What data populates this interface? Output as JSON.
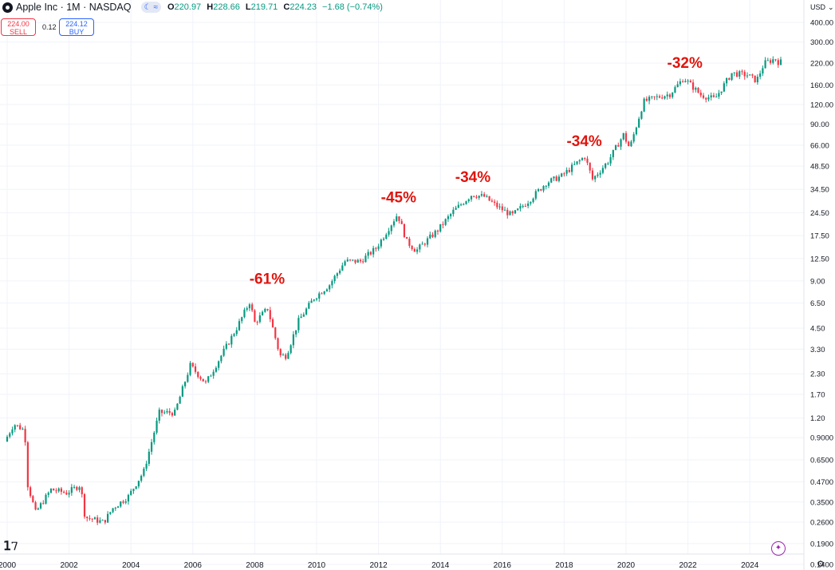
{
  "header": {
    "title": "Apple Inc · 1M · NASDAQ",
    "open_label": "O",
    "open": "220.97",
    "high_label": "H",
    "high": "228.66",
    "low_label": "L",
    "low": "219.71",
    "close_label": "C",
    "close": "224.23",
    "change": "−1.68 (−0.74%)"
  },
  "trade": {
    "sell_price": "224.00",
    "sell_label": "SELL",
    "spread": "0.12",
    "buy_price": "224.12",
    "buy_label": "BUY"
  },
  "currency": "USD",
  "colors": {
    "up": "#089981",
    "down": "#f23645",
    "annotation": "#e0150d",
    "grid": "#f0f3fa"
  },
  "chart_data": {
    "type": "candlestick",
    "title": "Apple Inc · 1M · NASDAQ",
    "scale": "log",
    "ylim": [
      0.118,
      430
    ],
    "xlim": [
      2000,
      2025.8
    ],
    "y_ticks": [
      "400.00",
      "300.00",
      "220.00",
      "160.00",
      "120.00",
      "90.00",
      "66.00",
      "48.50",
      "34.50",
      "24.50",
      "17.50",
      "12.50",
      "9.00",
      "6.50",
      "4.50",
      "3.30",
      "2.30",
      "1.70",
      "1.20",
      "0.9000",
      "0.6500",
      "0.4700",
      "0.3500",
      "0.2600",
      "0.1900",
      "0.1400"
    ],
    "x_ticks": [
      "2000",
      "2002",
      "2004",
      "2006",
      "2008",
      "2010",
      "2012",
      "2014",
      "2016",
      "2018",
      "2020",
      "2022",
      "2024"
    ],
    "price_path": [
      [
        2000.0,
        0.85
      ],
      [
        2000.3,
        1.1
      ],
      [
        2000.65,
        1.0
      ],
      [
        2000.75,
        0.45
      ],
      [
        2001.0,
        0.3
      ],
      [
        2001.5,
        0.42
      ],
      [
        2002.0,
        0.4
      ],
      [
        2002.45,
        0.45
      ],
      [
        2002.6,
        0.28
      ],
      [
        2003.2,
        0.26
      ],
      [
        2003.5,
        0.32
      ],
      [
        2004.0,
        0.38
      ],
      [
        2004.5,
        0.55
      ],
      [
        2005.0,
        1.3
      ],
      [
        2005.5,
        1.3
      ],
      [
        2006.0,
        2.6
      ],
      [
        2006.5,
        2.0
      ],
      [
        2007.0,
        3.0
      ],
      [
        2007.5,
        4.5
      ],
      [
        2007.95,
        6.8
      ],
      [
        2008.05,
        4.8
      ],
      [
        2008.5,
        6.0
      ],
      [
        2008.9,
        3.0
      ],
      [
        2009.1,
        3.0
      ],
      [
        2009.5,
        5.0
      ],
      [
        2010.0,
        7.0
      ],
      [
        2010.5,
        8.5
      ],
      [
        2011.0,
        12.0
      ],
      [
        2011.5,
        12.0
      ],
      [
        2012.0,
        14.5
      ],
      [
        2012.7,
        24.0
      ],
      [
        2013.0,
        16.0
      ],
      [
        2013.3,
        14.0
      ],
      [
        2014.0,
        19.0
      ],
      [
        2014.5,
        25.0
      ],
      [
        2015.1,
        32.0
      ],
      [
        2015.5,
        31.0
      ],
      [
        2015.9,
        27.0
      ],
      [
        2016.4,
        23.5
      ],
      [
        2017.0,
        30.0
      ],
      [
        2017.5,
        38.0
      ],
      [
        2018.0,
        42.0
      ],
      [
        2018.75,
        56.0
      ],
      [
        2019.0,
        40.0
      ],
      [
        2019.5,
        52.0
      ],
      [
        2020.0,
        77.0
      ],
      [
        2020.2,
        63.0
      ],
      [
        2020.65,
        125.0
      ],
      [
        2021.0,
        132.0
      ],
      [
        2021.5,
        140.0
      ],
      [
        2021.95,
        177.0
      ],
      [
        2022.5,
        138.0
      ],
      [
        2022.95,
        130.0
      ],
      [
        2023.5,
        190.0
      ],
      [
        2024.0,
        185.0
      ],
      [
        2024.3,
        170.0
      ],
      [
        2024.55,
        220.0
      ],
      [
        2024.9,
        235.0
      ],
      [
        2025.0,
        224.23
      ]
    ],
    "annotations": [
      {
        "text": "-61%",
        "x": 2008.4,
        "y": 8.6
      },
      {
        "text": "-45%",
        "x": 2012.65,
        "y": 28.5
      },
      {
        "text": "-34%",
        "x": 2015.05,
        "y": 38.5
      },
      {
        "text": "-34%",
        "x": 2018.65,
        "y": 65.0
      },
      {
        "text": "-32%",
        "x": 2021.9,
        "y": 205.0
      }
    ]
  }
}
